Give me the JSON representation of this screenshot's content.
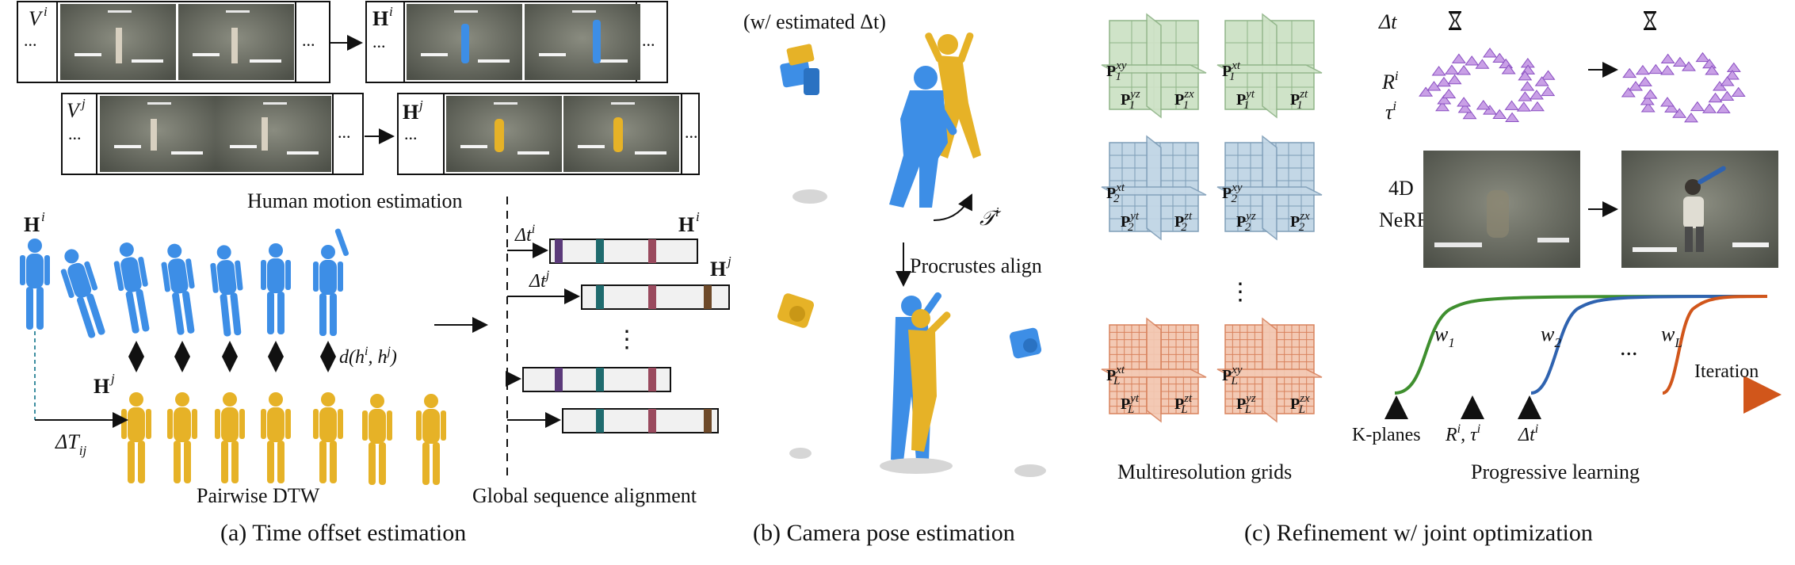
{
  "panel_a": {
    "caption": "(a) Time offset estimation",
    "motion_title": "Human motion estimation",
    "dtw_label": "Pairwise DTW",
    "global_label": "Global sequence alignment",
    "V_i": "V",
    "V_i_sup": "i",
    "V_j": "V",
    "V_j_sup": "j",
    "H_i": "H",
    "H_i_sup": "i",
    "H_j": "H",
    "H_j_sup": "j",
    "ellipsis": "...",
    "dt_i": "Δt",
    "dt_i_sup": "i",
    "dt_j": "Δt",
    "dt_j_sup": "j",
    "dT_ij": "ΔT",
    "dT_ij_sub": "ij",
    "distance": "d(h",
    "distance_i": "i",
    "distance_mid": ", h",
    "distance_j": "j",
    "distance_end": ")",
    "vdots": "⋮",
    "colors": {
      "blue": "#3d8ee6",
      "yellow": "#e6b227",
      "purple": "#5b3a7a",
      "teal": "#1f6b6e",
      "rose": "#9a4a5e",
      "brown": "#6e4a2a"
    }
  },
  "panel_b": {
    "caption": "(b) Camera pose estimation",
    "top_label": "(w/ estimated Δt)",
    "procrustes": "Procrustes align",
    "transform": "𝒯",
    "transform_sup": "i"
  },
  "panel_c": {
    "caption": "(c) Refinement w/ joint optimization",
    "grids_label": "Multiresolution grids",
    "progressive_label": "Progressive learning",
    "dt_label": "Δt",
    "R_label": "R",
    "R_sup": "i",
    "tau_label": "τ",
    "tau_sup": "i",
    "nerf_line1": "4D",
    "nerf_line2": "NeRF",
    "kplanes": "K-planes",
    "R_tau": "R",
    "R_tau_sup": "i",
    "R_tau_mid": ", τ",
    "R_tau_sup2": "i",
    "dt_i": "Δt",
    "dt_i_sup": "i",
    "iteration": "Iteration",
    "w1": "w",
    "w1_sub": "1",
    "w2": "w",
    "w2_sub": "2",
    "wL": "w",
    "wL_sub": "L",
    "dots": "...",
    "hourglass": "⌛",
    "grid_rows": [
      {
        "color": "#cfe3c8",
        "line": "#8fb487",
        "a": {
          "top": "xy",
          "left": "yz",
          "right": "zx",
          "sub": "1"
        },
        "b": {
          "top": "xt",
          "left": "yt",
          "right": "zt",
          "sub": "1"
        }
      },
      {
        "color": "#c3d7e6",
        "line": "#7e9db7",
        "a": {
          "top": "xt",
          "left": "yt",
          "right": "zt",
          "sub": "2"
        },
        "b": {
          "top": "xy",
          "left": "yz",
          "right": "zx",
          "sub": "2"
        }
      },
      {
        "color": "#f3c9b4",
        "line": "#d8825d",
        "a": {
          "top": "xt",
          "left": "yt",
          "right": "zt",
          "sub": "L"
        },
        "b": {
          "top": "xy",
          "left": "yz",
          "right": "zx",
          "sub": "L"
        }
      }
    ],
    "curve_colors": {
      "w1": "#3f8f2f",
      "w2": "#2f63b0",
      "wL": "#d1561b"
    }
  }
}
